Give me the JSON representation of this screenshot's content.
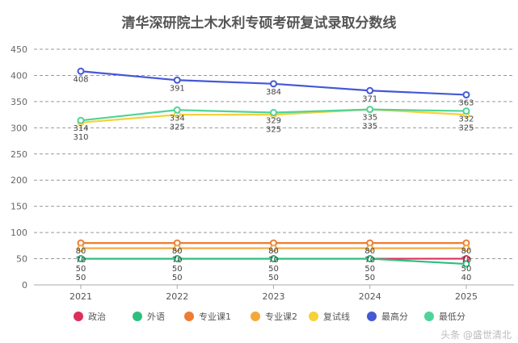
{
  "chart_data": {
    "type": "line",
    "title": "清华深研院土木水利专硕考研复试录取分数线",
    "xlabel": "",
    "ylabel": "",
    "categories": [
      "2021",
      "2022",
      "2023",
      "2024",
      "2025"
    ],
    "ylim": [
      0,
      450
    ],
    "yticks": [
      0,
      50,
      100,
      150,
      200,
      250,
      300,
      350,
      400,
      450
    ],
    "grid": true,
    "legend_position": "bottom",
    "series": [
      {
        "name": "政治",
        "color": "#dc2f5c",
        "values": [
          50,
          50,
          50,
          50,
          50
        ]
      },
      {
        "name": "外语",
        "color": "#2ebf7e",
        "values": [
          50,
          50,
          50,
          50,
          40
        ]
      },
      {
        "name": "专业课1",
        "color": "#ee7d32",
        "values": [
          80,
          80,
          80,
          80,
          80
        ]
      },
      {
        "name": "专业课2",
        "color": "#f4a83a",
        "values": [
          70,
          70,
          70,
          70,
          70
        ]
      },
      {
        "name": "复试线",
        "color": "#f6d13a",
        "values": [
          310,
          325,
          325,
          335,
          325
        ]
      },
      {
        "name": "最高分",
        "color": "#4458d6",
        "values": [
          408,
          391,
          384,
          371,
          363
        ]
      },
      {
        "name": "最低分",
        "color": "#4fd398",
        "values": [
          314,
          334,
          329,
          335,
          332
        ]
      }
    ]
  },
  "watermark": "头条 @盛世清北"
}
